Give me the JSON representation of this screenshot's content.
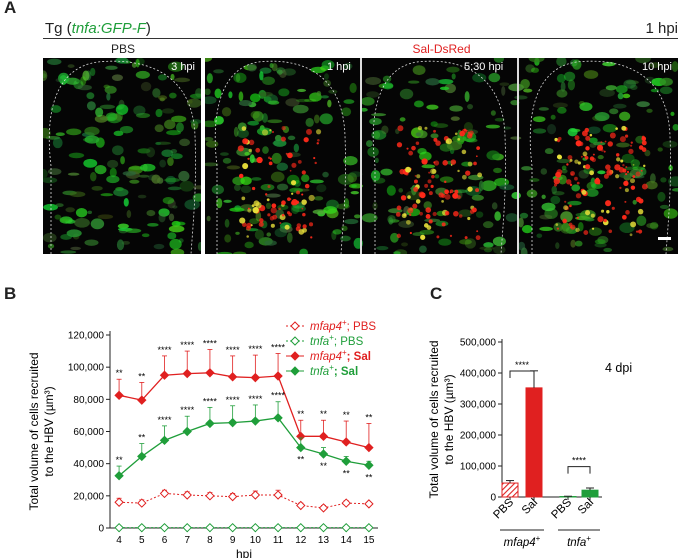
{
  "panel_a": {
    "letter": "A",
    "header_prefix": "Tg (",
    "header_gene": "tnfa:GFP-F",
    "header_suffix": ")",
    "header_time": "1 hpi",
    "group_pbs": "PBS",
    "group_sal": "Sal-DsRed",
    "images": [
      {
        "time": "3 hpi",
        "condition": "PBS"
      },
      {
        "time": "1 hpi",
        "condition": "Sal-DsRed"
      },
      {
        "time": "5:30 hpi",
        "condition": "Sal-DsRed"
      },
      {
        "time": "10 hpi",
        "condition": "Sal-DsRed"
      }
    ],
    "colors": {
      "green": "#1f9e3a",
      "red": "#e02020"
    }
  },
  "panel_b": {
    "letter": "B",
    "legend": [
      {
        "gene": "mfap4",
        "sup": "+",
        "cond": "; PBS",
        "color": "#e02020",
        "marker": "open-diamond",
        "dashed": true,
        "bold": false
      },
      {
        "gene": "tnfa",
        "sup": "+",
        "cond": "; PBS",
        "color": "#1f9e3a",
        "marker": "open-diamond",
        "dashed": true,
        "bold": false
      },
      {
        "gene": "mfap4",
        "sup": "+",
        "cond": "; Sal",
        "color": "#e02020",
        "marker": "filled-diamond",
        "dashed": false,
        "bold": true
      },
      {
        "gene": "tnfa",
        "sup": "+",
        "cond": "; Sal",
        "color": "#1f9e3a",
        "marker": "filled-diamond",
        "dashed": false,
        "bold": true
      }
    ]
  },
  "panel_c": {
    "letter": "C",
    "annotation": "4 dpi",
    "group_labels": [
      {
        "gene": "mfap4",
        "sup": "+"
      },
      {
        "gene": "tnfa",
        "sup": "+"
      }
    ]
  },
  "chart_data": [
    {
      "type": "line",
      "xlabel": "hpi",
      "ylabel": "Total volume of cells recruited to the HBV (µm³)",
      "ylabel_lines": [
        "Total volume of cells recruited",
        "to the HBV (µm³)"
      ],
      "ylim": [
        0,
        120000
      ],
      "yticks": [
        0,
        20000,
        40000,
        60000,
        80000,
        100000,
        120000
      ],
      "ytick_labels": [
        "0",
        "20,000",
        "40,000",
        "60,000",
        "80,000",
        "100,000",
        "120,000"
      ],
      "x": [
        4,
        5,
        6,
        7,
        8,
        9,
        10,
        11,
        12,
        13,
        14,
        15
      ],
      "series": [
        {
          "name": "mfap4+; PBS",
          "color": "#e02020",
          "dashed": true,
          "filled": false,
          "values": [
            16000,
            15500,
            21500,
            20500,
            20000,
            19500,
            20500,
            20500,
            14000,
            12500,
            15500,
            15000
          ],
          "errors": [
            2500,
            2000,
            2000,
            2000,
            2000,
            2000,
            2500,
            3000,
            1500,
            1500,
            1500,
            1000
          ]
        },
        {
          "name": "tnfa+; PBS",
          "color": "#1f9e3a",
          "dashed": true,
          "filled": false,
          "values": [
            200,
            200,
            200,
            200,
            200,
            200,
            200,
            200,
            200,
            200,
            200,
            200
          ],
          "errors": [
            0,
            0,
            0,
            0,
            0,
            0,
            0,
            0,
            0,
            0,
            0,
            0
          ]
        },
        {
          "name": "mfap4+; Sal",
          "color": "#e02020",
          "dashed": false,
          "filled": true,
          "values": [
            82500,
            79500,
            95000,
            96000,
            96500,
            94000,
            93500,
            94500,
            57000,
            57000,
            53500,
            50000
          ],
          "errors": [
            10000,
            11000,
            12000,
            14000,
            14500,
            13000,
            14000,
            14000,
            10000,
            10000,
            13000,
            15000
          ],
          "sig": [
            "**",
            "**",
            "****",
            "****",
            "****",
            "****",
            "****",
            "****",
            "**",
            "**",
            "**",
            "**"
          ]
        },
        {
          "name": "tnfa+; Sal",
          "color": "#1f9e3a",
          "dashed": false,
          "filled": true,
          "values": [
            32500,
            44500,
            54500,
            60000,
            65000,
            65500,
            66500,
            68500,
            50000,
            46000,
            41500,
            39000
          ],
          "errors": [
            6000,
            8000,
            9000,
            9500,
            10000,
            10500,
            10000,
            10000,
            6000,
            4000,
            3000,
            2500
          ],
          "sig": [
            "**",
            "**",
            "****",
            "****",
            "****",
            "****",
            "****",
            "****",
            "**",
            "**",
            "**",
            "**"
          ]
        }
      ]
    },
    {
      "type": "bar",
      "ylabel": "Total volume of cells recruited to the HBV (µm³)",
      "ylabel_lines": [
        "Total volume of cells recruited",
        "to the HBV (µm³)"
      ],
      "ylim": [
        0,
        500000
      ],
      "yticks": [
        0,
        100000,
        200000,
        300000,
        400000,
        500000
      ],
      "ytick_labels": [
        "0",
        "100,000",
        "200,000",
        "300,000",
        "400,000",
        "500,000"
      ],
      "categories": [
        "PBS",
        "Sal",
        "PBS",
        "Sal"
      ],
      "values": [
        45000,
        352000,
        1500,
        22000
      ],
      "errors": [
        8000,
        55000,
        1000,
        7000
      ],
      "colors": [
        "#e02020",
        "#e02020",
        "#1f9e3a",
        "#1f9e3a"
      ],
      "hatched": [
        true,
        false,
        true,
        false
      ],
      "significance": [
        {
          "pair": [
            0,
            1
          ],
          "label": "****"
        },
        {
          "pair": [
            2,
            3
          ],
          "label": "****"
        }
      ]
    }
  ]
}
